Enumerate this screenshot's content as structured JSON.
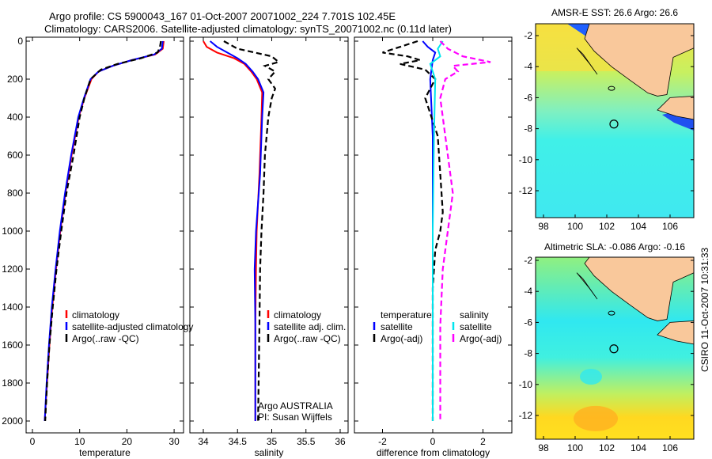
{
  "title_line1": "Argo profile: CS 5900043_167 01-Oct-2007 20071002_224 7.701S 102.45E",
  "title_line2": "Climatology: CARS2006. Satellite-adjusted climatology: synTS_20071002.nc (0.11d later)",
  "side_label": "CSIRO 11-Oct-2007 10:31:33",
  "colors": {
    "climatology": "#ff0000",
    "satellite": "#0000ff",
    "argo": "#000000",
    "sal_satellite": "#00e5ee",
    "sal_argo": "#ff00ff",
    "land": "#f9c89b"
  },
  "chart_data": [
    {
      "type": "line",
      "id": "temperature",
      "xlabel": "temperature",
      "ylabel": "",
      "xlim": [
        -2,
        32
      ],
      "ylim": [
        2050,
        0
      ],
      "xticks": [
        "0",
        "10",
        "20",
        "30"
      ],
      "xtick_values": [
        0,
        10,
        20,
        30
      ],
      "yticks": [
        "0",
        "200",
        "400",
        "600",
        "800",
        "1000",
        "1200",
        "1400",
        "1600",
        "1800",
        "2000"
      ],
      "legend": [
        "climatology",
        "satellite-adjusted climatology",
        "Argo(..raw -QC)"
      ],
      "series": [
        {
          "name": "climatology",
          "style": "solid",
          "color": "#ff0000",
          "depth": [
            0,
            40,
            70,
            100,
            130,
            160,
            200,
            300,
            400,
            600,
            800,
            1000,
            1200,
            1400,
            1600,
            1800,
            2000
          ],
          "values": [
            27.8,
            27.6,
            26,
            21,
            17,
            14,
            12.5,
            11,
            9.8,
            8.3,
            7,
            5.9,
            5,
            4.2,
            3.6,
            3.1,
            2.6
          ]
        },
        {
          "name": "satellite-adjusted climatology",
          "style": "solid",
          "color": "#0000ff",
          "depth": [
            0,
            40,
            70,
            100,
            130,
            160,
            200,
            300,
            400,
            600,
            800,
            1000,
            1200,
            1400,
            1600,
            1800,
            2000
          ],
          "values": [
            27.6,
            27.4,
            25.8,
            21,
            17,
            14,
            12.3,
            10.9,
            9.7,
            8.2,
            6.9,
            5.8,
            4.9,
            4.1,
            3.5,
            3,
            2.6
          ]
        },
        {
          "name": "Argo(..raw -QC)",
          "style": "dashed",
          "color": "#000000",
          "depth": [
            0,
            30,
            60,
            90,
            120,
            150,
            200,
            300,
            400,
            600,
            800,
            1000,
            1200,
            1400,
            1600,
            1800,
            2000
          ],
          "values": [
            27.2,
            27,
            26.5,
            23,
            18,
            14.5,
            12.3,
            11,
            10,
            8.7,
            7.2,
            6.1,
            5.1,
            4.3,
            3.6,
            3.1,
            2.7
          ]
        }
      ]
    },
    {
      "type": "line",
      "id": "salinity",
      "xlabel": "salinity",
      "xlim": [
        33.8,
        36.1
      ],
      "ylim": [
        2050,
        0
      ],
      "xticks": [
        "34",
        "34.5",
        "35",
        "35.5",
        "36"
      ],
      "xtick_values": [
        34,
        34.5,
        35,
        35.5,
        36
      ],
      "legend": [
        "climatology",
        "satellite adj. clim.",
        "Argo(..raw -QC)"
      ],
      "annotation": [
        "Argo AUSTRALIA",
        "PI: Susan Wijffels"
      ],
      "series": [
        {
          "name": "climatology",
          "style": "solid",
          "color": "#ff0000",
          "depth": [
            0,
            30,
            60,
            90,
            120,
            160,
            200,
            270,
            400,
            700,
            1000,
            1200,
            1500,
            2000
          ],
          "values": [
            34.0,
            34.05,
            34.2,
            34.45,
            34.6,
            34.7,
            34.78,
            34.86,
            34.85,
            34.82,
            34.78,
            34.77,
            34.76,
            34.76
          ]
        },
        {
          "name": "satellite adj. clim.",
          "style": "solid",
          "color": "#0000ff",
          "depth": [
            0,
            30,
            60,
            90,
            120,
            160,
            200,
            270,
            400,
            700,
            1000,
            1200,
            1500,
            2000
          ],
          "values": [
            34.1,
            34.2,
            34.35,
            34.5,
            34.62,
            34.72,
            34.8,
            34.88,
            34.86,
            34.83,
            34.77,
            34.75,
            34.76,
            34.76
          ]
        },
        {
          "name": "Argo(..raw -QC)",
          "style": "dashed",
          "color": "#000000",
          "depth": [
            0,
            40,
            80,
            110,
            130,
            160,
            200,
            250,
            300,
            400,
            600,
            800,
            1000,
            1200,
            1500,
            2000
          ],
          "values": [
            34.3,
            34.5,
            35.0,
            35.1,
            34.9,
            35.05,
            34.95,
            35.05,
            35.0,
            34.95,
            34.9,
            34.88,
            34.85,
            34.83,
            34.82,
            34.8
          ]
        }
      ]
    },
    {
      "type": "line",
      "id": "difference",
      "xlabel": "difference from climatology",
      "xlim": [
        -3.1,
        3.1
      ],
      "ylim": [
        2050,
        0
      ],
      "xticks": [
        "-2",
        "0",
        "2"
      ],
      "xtick_values": [
        -2,
        0,
        2
      ],
      "legend_temperature": {
        "title": "temperature",
        "items": [
          "satellite",
          "Argo(-adj)"
        ]
      },
      "legend_salinity": {
        "title": "salinity",
        "items": [
          "satellite",
          "Argo(-adj)"
        ]
      },
      "series": [
        {
          "name": "temperature satellite",
          "style": "solid",
          "color": "#0000ff",
          "depth": [
            0,
            30,
            60,
            100,
            200,
            500,
            1000,
            1500,
            1900
          ],
          "values": [
            -0.4,
            -0.2,
            0.1,
            0,
            -0.1,
            0,
            0,
            0,
            0
          ]
        },
        {
          "name": "temperature Argo(-adj)",
          "style": "dashed",
          "color": "#000000",
          "depth": [
            0,
            60,
            80,
            100,
            120,
            150,
            200,
            300,
            500,
            700,
            900,
            1000,
            1100,
            1300,
            1600,
            2000
          ],
          "values": [
            -0.6,
            -2,
            -1,
            -0.5,
            -1.3,
            -0.3,
            0.1,
            -0.3,
            0.2,
            0.3,
            0.4,
            0.3,
            0.1,
            0,
            0,
            0
          ]
        },
        {
          "name": "salinity satellite",
          "style": "solid",
          "color": "#00e5ee",
          "depth": [
            0,
            40,
            80,
            120,
            200,
            500,
            1000,
            1500,
            2000
          ],
          "values": [
            0.4,
            0.2,
            0.3,
            -0.1,
            0.1,
            0.05,
            0,
            0,
            0
          ]
        },
        {
          "name": "salinity Argo(-adj)",
          "style": "dashed",
          "color": "#ff00ff",
          "depth": [
            0,
            40,
            80,
            110,
            130,
            160,
            200,
            300,
            500,
            800,
            1000,
            1200,
            1500,
            2000
          ],
          "values": [
            0.3,
            0.6,
            1.2,
            2.3,
            0.8,
            1.0,
            0.5,
            0.3,
            0.5,
            0.8,
            0.6,
            0.4,
            0.3,
            0.3
          ]
        }
      ]
    },
    {
      "type": "heatmap",
      "id": "sst_map",
      "title": "AMSR-E SST: 26.6 Argo: 26.6",
      "xticks": [
        "98",
        "100",
        "102",
        "104",
        "106"
      ],
      "xtick_values": [
        98,
        100,
        102,
        104,
        106
      ],
      "yticks": [
        "-2",
        "-4",
        "-6",
        "-8",
        "-10",
        "-12"
      ],
      "ytick_values": [
        -2,
        -4,
        -6,
        -8,
        -10,
        -12
      ],
      "float_position": {
        "lon": 102.45,
        "lat": -7.701
      }
    },
    {
      "type": "heatmap",
      "id": "sla_map",
      "title": "Altimetric SLA: -0.086 Argo: -0.16",
      "xticks": [
        "98",
        "100",
        "102",
        "104",
        "106"
      ],
      "xtick_values": [
        98,
        100,
        102,
        104,
        106
      ],
      "yticks": [
        "-2",
        "-4",
        "-6",
        "-8",
        "-10",
        "-12"
      ],
      "ytick_values": [
        -2,
        -4,
        -6,
        -8,
        -10,
        -12
      ],
      "float_position": {
        "lon": 102.45,
        "lat": -7.701
      }
    }
  ]
}
